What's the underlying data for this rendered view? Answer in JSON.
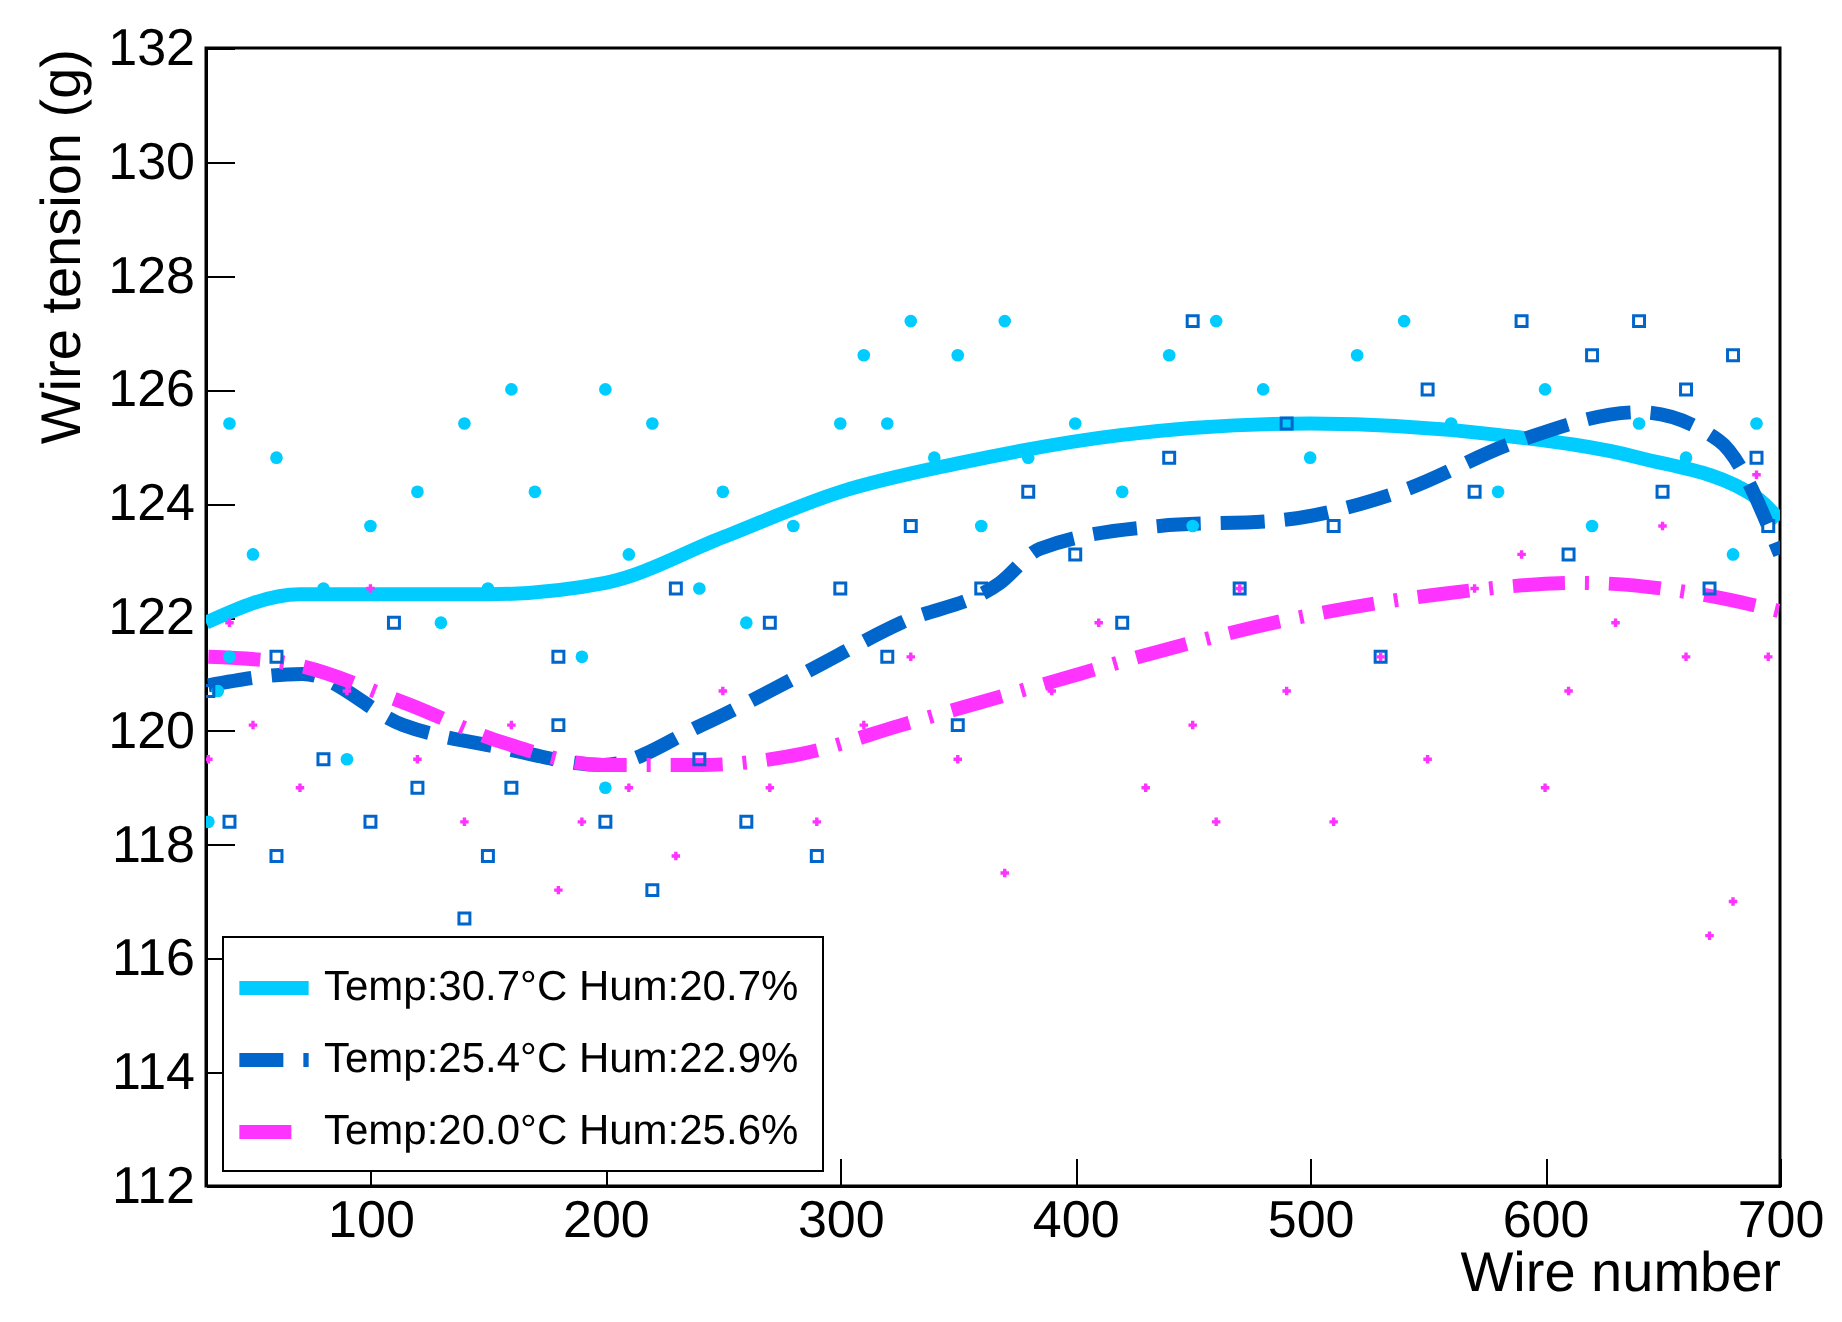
{
  "chart_data": {
    "type": "scatter",
    "xlabel": "Wire number",
    "ylabel": "Wire tension (g)",
    "xlim": [
      30,
      700
    ],
    "ylim": [
      112,
      132
    ],
    "xticks": [
      100,
      200,
      300,
      400,
      500,
      600,
      700
    ],
    "yticks": [
      112,
      114,
      116,
      118,
      120,
      122,
      124,
      126,
      128,
      130,
      132
    ],
    "grid": false,
    "legend": "bottom left",
    "series": [
      {
        "type": "scatter",
        "marker": "circle",
        "color": "#00ccff",
        "x": [
          31,
          35,
          40,
          50,
          60,
          40,
          80,
          100,
          120,
          130,
          150,
          140,
          160,
          170,
          190,
          200,
          210,
          220,
          240,
          250,
          260,
          280,
          300,
          310,
          320,
          330,
          340,
          350,
          360,
          370,
          380,
          400,
          420,
          440,
          450,
          460,
          480,
          500,
          520,
          540,
          560,
          580,
          600,
          620,
          640,
          660,
          680,
          690,
          200,
          90
        ],
        "values": [
          118.4,
          120.7,
          121.3,
          123.1,
          124.8,
          125.4,
          122.5,
          123.6,
          124.2,
          121.9,
          122.5,
          125.4,
          126.0,
          124.2,
          121.3,
          126.0,
          123.1,
          125.4,
          122.5,
          124.2,
          121.9,
          123.6,
          125.4,
          126.6,
          125.4,
          127.2,
          124.8,
          126.6,
          123.6,
          127.2,
          124.8,
          125.4,
          124.2,
          126.6,
          123.6,
          127.2,
          126.0,
          124.8,
          126.6,
          127.2,
          125.4,
          124.2,
          126.0,
          123.6,
          125.4,
          124.8,
          123.1,
          125.4,
          119.0,
          119.5
        ]
      },
      {
        "type": "scatter",
        "marker": "square",
        "color": "#0066cc",
        "x": [
          31,
          40,
          60,
          80,
          100,
          120,
          140,
          150,
          160,
          180,
          200,
          220,
          240,
          260,
          270,
          290,
          300,
          320,
          330,
          350,
          360,
          380,
          400,
          420,
          440,
          450,
          470,
          490,
          510,
          530,
          550,
          570,
          590,
          610,
          620,
          640,
          650,
          660,
          670,
          680,
          690,
          695,
          110,
          230,
          60,
          180
        ],
        "values": [
          120.7,
          118.4,
          117.8,
          119.5,
          118.4,
          119.0,
          116.7,
          117.8,
          119.0,
          121.3,
          118.4,
          117.2,
          119.5,
          118.4,
          121.9,
          117.8,
          122.5,
          121.3,
          123.6,
          120.1,
          122.5,
          124.2,
          123.1,
          121.9,
          124.8,
          127.2,
          122.5,
          125.4,
          123.6,
          121.3,
          126.0,
          124.2,
          127.2,
          123.1,
          126.6,
          127.2,
          124.2,
          126.0,
          122.5,
          126.6,
          124.8,
          123.6,
          121.9,
          122.5,
          121.3,
          120.1
        ]
      },
      {
        "type": "scatter",
        "marker": "cross",
        "color": "#ff33ff",
        "x": [
          31,
          40,
          50,
          70,
          90,
          100,
          120,
          140,
          160,
          180,
          190,
          210,
          230,
          250,
          270,
          290,
          310,
          330,
          350,
          370,
          390,
          410,
          430,
          450,
          470,
          490,
          510,
          530,
          550,
          570,
          590,
          610,
          630,
          650,
          670,
          680,
          690,
          695,
          600,
          460,
          660
        ],
        "values": [
          119.5,
          121.9,
          120.1,
          119.0,
          120.7,
          122.5,
          119.5,
          118.4,
          120.1,
          117.2,
          118.4,
          119.0,
          117.8,
          120.7,
          119.0,
          118.4,
          120.1,
          121.3,
          119.5,
          117.5,
          120.7,
          121.9,
          119.0,
          120.1,
          122.5,
          120.7,
          118.4,
          121.3,
          119.5,
          122.5,
          123.1,
          120.7,
          121.9,
          123.6,
          116.4,
          117.0,
          124.5,
          121.3,
          119.0,
          118.4,
          121.3
        ]
      },
      {
        "type": "line",
        "name": "Temp:30.7°C  Hum:20.7%",
        "line_style": "solid",
        "color": "#00ccff",
        "x": [
          30,
          70,
          150,
          200,
          250,
          300,
          350,
          420,
          500,
          580,
          640,
          690,
          700
        ],
        "values": [
          121.9,
          122.4,
          122.4,
          122.6,
          123.4,
          124.2,
          124.7,
          125.2,
          125.4,
          125.2,
          124.8,
          124.1,
          123.7
        ]
      },
      {
        "type": "line",
        "name": "Temp:25.4°C  Hum:22.9%",
        "line_style": "dashed",
        "color": "#0066cc",
        "x": [
          31,
          71,
          114,
          156,
          199,
          241,
          284,
          326,
          368,
          385,
          436,
          487,
          538,
          589,
          640,
          674,
          700
        ],
        "values": [
          120.8,
          121.0,
          120.1,
          119.7,
          119.4,
          120.1,
          121.0,
          121.9,
          122.6,
          123.2,
          123.6,
          123.7,
          124.2,
          125.1,
          125.6,
          125.1,
          123.1
        ]
      },
      {
        "type": "line",
        "name": "Temp:20.0°C  Hum:25.6%",
        "line_style": "dashdot",
        "color": "#ff33ff",
        "x": [
          31,
          63,
          114,
          156,
          199,
          241,
          284,
          326,
          368,
          385,
          436,
          496,
          555,
          615,
          666,
          700
        ],
        "values": [
          121.3,
          121.2,
          120.5,
          119.8,
          119.4,
          119.4,
          119.6,
          120.1,
          120.6,
          120.8,
          121.4,
          122.0,
          122.4,
          122.6,
          122.4,
          122.1
        ]
      }
    ]
  }
}
